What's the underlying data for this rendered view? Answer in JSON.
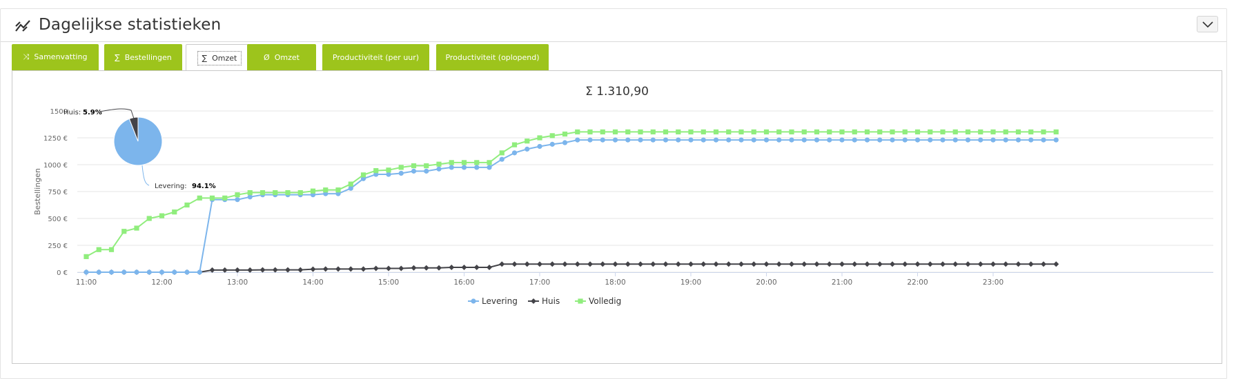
{
  "panel": {
    "title": "Dagelijkse statistieken",
    "header_icon": "line-chart-icon",
    "collapse_icon": "chevron-down-icon"
  },
  "tabs": [
    {
      "glyph": "⤨",
      "label": "Samenvatting",
      "active": false
    },
    {
      "glyph": "∑",
      "label": "Bestellingen",
      "active": false
    },
    {
      "glyph": "∑",
      "label": "Omzet",
      "active": true
    },
    {
      "glyph": "Ø",
      "label": "Omzet",
      "active": false
    },
    {
      "glyph": "",
      "label": "Productiviteit (per uur)",
      "active": false
    },
    {
      "glyph": "",
      "label": "Productiviteit (oplopend)",
      "active": false
    }
  ],
  "colors": {
    "tab_green": "#9dc41c",
    "levering": "#7cb5ec",
    "huis": "#434348",
    "volledig": "#90ed7d"
  },
  "chart_data": {
    "type": "line",
    "title": "Σ 1.310,90",
    "ylabel": "Bestellingen",
    "xlabel": "",
    "ylim": [
      0,
      1500
    ],
    "y_ticks": [
      "0 €",
      "250 €",
      "500 €",
      "750 €",
      "1000 €",
      "1250 €",
      "1500"
    ],
    "x_ticks": [
      "11:00",
      "12:00",
      "13:00",
      "14:00",
      "15:00",
      "16:00",
      "17:00",
      "18:00",
      "19:00",
      "20:00",
      "21:00",
      "22:00",
      "23:00"
    ],
    "x_start_hour": 11,
    "x_step_minutes": 10,
    "legend": "bottom-center",
    "grid": true,
    "series": [
      {
        "name": "Levering",
        "marker": "circle",
        "values": [
          0,
          0,
          0,
          0,
          0,
          0,
          0,
          0,
          0,
          0,
          675,
          675,
          675,
          700,
          720,
          720,
          720,
          720,
          720,
          730,
          730,
          780,
          870,
          910,
          910,
          920,
          940,
          940,
          960,
          975,
          975,
          975,
          975,
          1050,
          1110,
          1145,
          1170,
          1190,
          1205,
          1230,
          1230,
          1230,
          1230,
          1230,
          1230,
          1230,
          1230,
          1230,
          1230,
          1230,
          1230,
          1230,
          1230,
          1230,
          1230,
          1230,
          1230,
          1230,
          1230,
          1230,
          1230,
          1230,
          1230,
          1230,
          1230,
          1230,
          1230,
          1230,
          1230,
          1230,
          1230,
          1230,
          1230,
          1230,
          1230,
          1230,
          1230,
          1230
        ]
      },
      {
        "name": "Huis",
        "marker": "diamond",
        "values": [
          0,
          0,
          0,
          0,
          0,
          0,
          0,
          0,
          0,
          0,
          20,
          20,
          20,
          20,
          22,
          22,
          22,
          22,
          28,
          30,
          30,
          30,
          30,
          35,
          35,
          35,
          40,
          40,
          40,
          45,
          45,
          45,
          45,
          75,
          75,
          75,
          75,
          75,
          75,
          75,
          75,
          75,
          75,
          75,
          75,
          75,
          75,
          75,
          75,
          75,
          75,
          75,
          75,
          75,
          75,
          75,
          75,
          75,
          75,
          75,
          75,
          75,
          75,
          75,
          75,
          75,
          75,
          75,
          75,
          75,
          75,
          75,
          75,
          75,
          75,
          75,
          75,
          75
        ]
      },
      {
        "name": "Volledig",
        "marker": "square",
        "values": [
          145,
          210,
          210,
          380,
          410,
          500,
          525,
          560,
          625,
          690,
          690,
          690,
          720,
          740,
          740,
          740,
          740,
          740,
          755,
          765,
          765,
          820,
          905,
          945,
          950,
          975,
          990,
          990,
          1005,
          1020,
          1020,
          1020,
          1020,
          1110,
          1185,
          1220,
          1250,
          1270,
          1285,
          1305,
          1305,
          1305,
          1305,
          1305,
          1305,
          1305,
          1305,
          1305,
          1305,
          1305,
          1305,
          1305,
          1305,
          1305,
          1305,
          1305,
          1305,
          1305,
          1305,
          1305,
          1305,
          1305,
          1305,
          1305,
          1305,
          1305,
          1305,
          1305,
          1305,
          1305,
          1305,
          1305,
          1305,
          1305,
          1305,
          1305,
          1305,
          1305
        ]
      }
    ],
    "pie": {
      "slices": [
        {
          "name": "Huis",
          "percent": 5.9,
          "label": "Huis:",
          "value_label": "5.9%"
        },
        {
          "name": "Levering",
          "percent": 94.1,
          "label": "Levering:",
          "value_label": "94.1%"
        }
      ]
    }
  }
}
